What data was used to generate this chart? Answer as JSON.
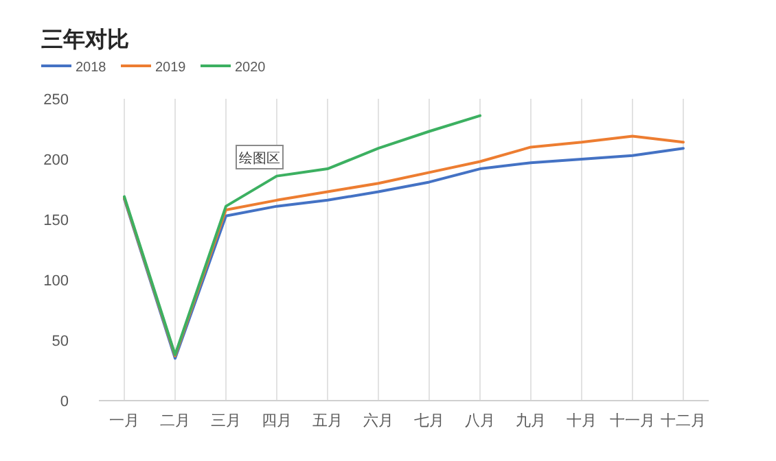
{
  "chart_data": {
    "type": "line",
    "title": "三年对比",
    "categories": [
      "一月",
      "二月",
      "三月",
      "四月",
      "五月",
      "六月",
      "七月",
      "八月",
      "九月",
      "十月",
      "十一月",
      "十二月"
    ],
    "series": [
      {
        "name": "2018",
        "color": "#4472c4",
        "values": [
          167,
          35,
          153,
          161,
          166,
          173,
          181,
          192,
          197,
          200,
          203,
          209
        ]
      },
      {
        "name": "2019",
        "color": "#ed7d31",
        "values": [
          168,
          37,
          158,
          166,
          173,
          180,
          189,
          198,
          210,
          214,
          219,
          214
        ]
      },
      {
        "name": "2020",
        "color": "#3cb061",
        "values": [
          169,
          38,
          161,
          186,
          192,
          209,
          223,
          236,
          null,
          null,
          null,
          null
        ]
      }
    ],
    "ylim": [
      0,
      250
    ],
    "yticks": [
      0,
      50,
      100,
      150,
      200,
      250
    ],
    "grid": "x",
    "legend": "top left",
    "annotations": [
      "绘图区"
    ]
  }
}
